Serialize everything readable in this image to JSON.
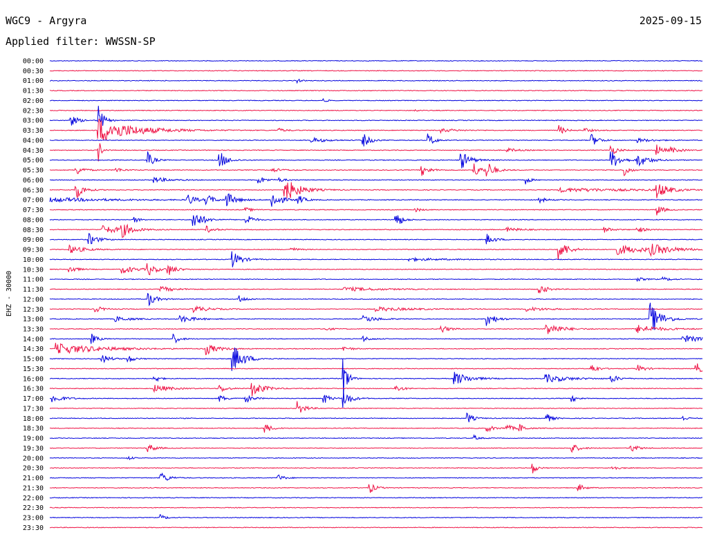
{
  "header": {
    "station": "WGC9 - Argyra",
    "date": "2025-09-15",
    "filter": "Applied filter: WWSSN-SP"
  },
  "chart_data": {
    "type": "line",
    "title": "WGC9 - Argyra",
    "ylabel": "EHZ - 30000",
    "trace_colors": [
      "#0000dd",
      "#ee1144"
    ],
    "grid": false,
    "rows": [
      {
        "label": "00:00",
        "events": []
      },
      {
        "label": "00:30",
        "events": []
      },
      {
        "label": "01:00",
        "events": [
          {
            "t": 0.38,
            "a": 3,
            "d": 0.004
          }
        ]
      },
      {
        "label": "01:30",
        "events": []
      },
      {
        "label": "02:00",
        "events": [
          {
            "t": 0.42,
            "a": 4,
            "d": 0.004
          }
        ]
      },
      {
        "label": "02:30",
        "events": [
          {
            "t": 0.56,
            "a": 2,
            "d": 0.004
          }
        ]
      },
      {
        "label": "03:00",
        "events": [
          {
            "t": 0.03,
            "a": 10,
            "d": 0.01
          },
          {
            "t": 0.075,
            "a": 25,
            "d": 0.006
          }
        ]
      },
      {
        "label": "03:30",
        "events": [
          {
            "t": 0.075,
            "a": 18,
            "d": 0.05
          },
          {
            "t": 0.35,
            "a": 3,
            "d": 0.01
          },
          {
            "t": 0.6,
            "a": 3,
            "d": 0.02
          },
          {
            "t": 0.78,
            "a": 8,
            "d": 0.008
          },
          {
            "t": 0.82,
            "a": 3,
            "d": 0.01
          }
        ]
      },
      {
        "label": "04:00",
        "events": [
          {
            "t": 0.4,
            "a": 4,
            "d": 0.02
          },
          {
            "t": 0.48,
            "a": 10,
            "d": 0.01
          },
          {
            "t": 0.58,
            "a": 10,
            "d": 0.008
          },
          {
            "t": 0.83,
            "a": 9,
            "d": 0.01
          },
          {
            "t": 0.9,
            "a": 3,
            "d": 0.02
          }
        ]
      },
      {
        "label": "04:30",
        "events": [
          {
            "t": 0.075,
            "a": 16,
            "d": 0.004
          },
          {
            "t": 0.7,
            "a": 3,
            "d": 0.015
          },
          {
            "t": 0.86,
            "a": 8,
            "d": 0.008
          },
          {
            "t": 0.93,
            "a": 9,
            "d": 0.008
          },
          {
            "t": 0.95,
            "a": 4,
            "d": 0.015
          }
        ]
      },
      {
        "label": "05:00",
        "events": [
          {
            "t": 0.15,
            "a": 12,
            "d": 0.008
          },
          {
            "t": 0.26,
            "a": 14,
            "d": 0.01
          },
          {
            "t": 0.63,
            "a": 14,
            "d": 0.012
          },
          {
            "t": 0.86,
            "a": 14,
            "d": 0.012
          },
          {
            "t": 0.9,
            "a": 10,
            "d": 0.015
          }
        ]
      },
      {
        "label": "05:30",
        "events": [
          {
            "t": 0.04,
            "a": 8,
            "d": 0.01
          },
          {
            "t": 0.1,
            "a": 4,
            "d": 0.01
          },
          {
            "t": 0.34,
            "a": 3,
            "d": 0.015
          },
          {
            "t": 0.57,
            "a": 8,
            "d": 0.01
          },
          {
            "t": 0.65,
            "a": 10,
            "d": 0.01
          },
          {
            "t": 0.67,
            "a": 12,
            "d": 0.01
          },
          {
            "t": 0.88,
            "a": 12,
            "d": 0.006
          }
        ]
      },
      {
        "label": "06:00",
        "events": [
          {
            "t": 0.16,
            "a": 4,
            "d": 0.02
          },
          {
            "t": 0.32,
            "a": 6,
            "d": 0.01
          },
          {
            "t": 0.35,
            "a": 3,
            "d": 0.01
          },
          {
            "t": 0.73,
            "a": 6,
            "d": 0.006
          }
        ]
      },
      {
        "label": "06:30",
        "events": [
          {
            "t": 0.04,
            "a": 14,
            "d": 0.01
          },
          {
            "t": 0.36,
            "a": 18,
            "d": 0.02
          },
          {
            "t": 0.78,
            "a": 3,
            "d": 0.1
          },
          {
            "t": 0.93,
            "a": 12,
            "d": 0.015
          }
        ]
      },
      {
        "label": "07:00",
        "events": [
          {
            "t": 0.0,
            "a": 3,
            "d": 0.09
          },
          {
            "t": 0.21,
            "a": 10,
            "d": 0.01
          },
          {
            "t": 0.24,
            "a": 8,
            "d": 0.01
          },
          {
            "t": 0.27,
            "a": 12,
            "d": 0.012
          },
          {
            "t": 0.34,
            "a": 14,
            "d": 0.012
          },
          {
            "t": 0.38,
            "a": 8,
            "d": 0.008
          },
          {
            "t": 0.75,
            "a": 4,
            "d": 0.01
          }
        ]
      },
      {
        "label": "07:30",
        "events": [
          {
            "t": 0.3,
            "a": 3,
            "d": 0.01
          },
          {
            "t": 0.56,
            "a": 3,
            "d": 0.008
          },
          {
            "t": 0.93,
            "a": 9,
            "d": 0.008
          }
        ]
      },
      {
        "label": "08:00",
        "events": [
          {
            "t": 0.13,
            "a": 5,
            "d": 0.006
          },
          {
            "t": 0.22,
            "a": 16,
            "d": 0.012
          },
          {
            "t": 0.3,
            "a": 12,
            "d": 0.008
          },
          {
            "t": 0.53,
            "a": 14,
            "d": 0.008
          }
        ]
      },
      {
        "label": "08:30",
        "events": [
          {
            "t": 0.08,
            "a": 6,
            "d": 0.03
          },
          {
            "t": 0.11,
            "a": 10,
            "d": 0.012
          },
          {
            "t": 0.24,
            "a": 5,
            "d": 0.01
          },
          {
            "t": 0.7,
            "a": 3,
            "d": 0.02
          },
          {
            "t": 0.85,
            "a": 4,
            "d": 0.01
          },
          {
            "t": 0.9,
            "a": 5,
            "d": 0.01
          }
        ]
      },
      {
        "label": "09:00",
        "events": [
          {
            "t": 0.06,
            "a": 9,
            "d": 0.012
          },
          {
            "t": 0.67,
            "a": 8,
            "d": 0.01
          }
        ]
      },
      {
        "label": "09:30",
        "events": [
          {
            "t": 0.03,
            "a": 6,
            "d": 0.02
          },
          {
            "t": 0.37,
            "a": 3,
            "d": 0.01
          },
          {
            "t": 0.78,
            "a": 16,
            "d": 0.012
          },
          {
            "t": 0.87,
            "a": 7,
            "d": 0.04
          },
          {
            "t": 0.92,
            "a": 7,
            "d": 0.03
          }
        ]
      },
      {
        "label": "10:00",
        "events": [
          {
            "t": 0.28,
            "a": 12,
            "d": 0.012
          },
          {
            "t": 0.55,
            "a": 2,
            "d": 0.05
          }
        ]
      },
      {
        "label": "10:30",
        "events": [
          {
            "t": 0.03,
            "a": 6,
            "d": 0.01
          },
          {
            "t": 0.11,
            "a": 6,
            "d": 0.02
          },
          {
            "t": 0.15,
            "a": 10,
            "d": 0.01
          },
          {
            "t": 0.18,
            "a": 10,
            "d": 0.01
          }
        ]
      },
      {
        "label": "11:00",
        "events": [
          {
            "t": 0.9,
            "a": 3,
            "d": 0.01
          },
          {
            "t": 0.94,
            "a": 3,
            "d": 0.01
          }
        ]
      },
      {
        "label": "11:30",
        "events": [
          {
            "t": 0.17,
            "a": 4,
            "d": 0.02
          },
          {
            "t": 0.45,
            "a": 3,
            "d": 0.05
          },
          {
            "t": 0.75,
            "a": 8,
            "d": 0.01
          }
        ]
      },
      {
        "label": "12:00",
        "events": [
          {
            "t": 0.15,
            "a": 12,
            "d": 0.01
          },
          {
            "t": 0.29,
            "a": 5,
            "d": 0.01
          }
        ]
      },
      {
        "label": "12:30",
        "events": [
          {
            "t": 0.07,
            "a": 5,
            "d": 0.01
          },
          {
            "t": 0.22,
            "a": 5,
            "d": 0.02
          },
          {
            "t": 0.5,
            "a": 3,
            "d": 0.05
          },
          {
            "t": 0.73,
            "a": 3,
            "d": 0.03
          }
        ]
      },
      {
        "label": "13:00",
        "events": [
          {
            "t": 0.1,
            "a": 4,
            "d": 0.02
          },
          {
            "t": 0.2,
            "a": 5,
            "d": 0.02
          },
          {
            "t": 0.48,
            "a": 5,
            "d": 0.02
          },
          {
            "t": 0.67,
            "a": 10,
            "d": 0.012
          },
          {
            "t": 0.92,
            "a": 24,
            "d": 0.015
          }
        ]
      },
      {
        "label": "13:30",
        "events": [
          {
            "t": 0.42,
            "a": 3,
            "d": 0.01
          },
          {
            "t": 0.6,
            "a": 6,
            "d": 0.01
          },
          {
            "t": 0.76,
            "a": 10,
            "d": 0.02
          },
          {
            "t": 0.9,
            "a": 6,
            "d": 0.03
          }
        ]
      },
      {
        "label": "14:00",
        "events": [
          {
            "t": 0.065,
            "a": 7,
            "d": 0.008
          },
          {
            "t": 0.19,
            "a": 7,
            "d": 0.008
          },
          {
            "t": 0.48,
            "a": 4,
            "d": 0.01
          },
          {
            "t": 0.97,
            "a": 5,
            "d": 0.03
          }
        ]
      },
      {
        "label": "14:30",
        "events": [
          {
            "t": 0.01,
            "a": 8,
            "d": 0.06
          },
          {
            "t": 0.24,
            "a": 8,
            "d": 0.015
          },
          {
            "t": 0.45,
            "a": 4,
            "d": 0.01
          }
        ]
      },
      {
        "label": "15:00",
        "events": [
          {
            "t": 0.08,
            "a": 7,
            "d": 0.01
          },
          {
            "t": 0.12,
            "a": 6,
            "d": 0.008
          },
          {
            "t": 0.28,
            "a": 22,
            "d": 0.015
          }
        ]
      },
      {
        "label": "15:30",
        "events": [
          {
            "t": 0.83,
            "a": 8,
            "d": 0.008
          },
          {
            "t": 0.9,
            "a": 6,
            "d": 0.01
          },
          {
            "t": 0.99,
            "a": 9,
            "d": 0.01
          }
        ]
      },
      {
        "label": "16:00",
        "events": [
          {
            "t": 0.16,
            "a": 8,
            "d": 0.006
          },
          {
            "t": 0.45,
            "a": 30,
            "d": 0.006
          },
          {
            "t": 0.62,
            "a": 10,
            "d": 0.02
          },
          {
            "t": 0.76,
            "a": 6,
            "d": 0.03
          },
          {
            "t": 0.86,
            "a": 6,
            "d": 0.01
          }
        ]
      },
      {
        "label": "16:30",
        "events": [
          {
            "t": 0.16,
            "a": 6,
            "d": 0.02
          },
          {
            "t": 0.26,
            "a": 6,
            "d": 0.01
          },
          {
            "t": 0.31,
            "a": 12,
            "d": 0.015
          },
          {
            "t": 0.53,
            "a": 5,
            "d": 0.01
          }
        ]
      },
      {
        "label": "17:00",
        "events": [
          {
            "t": 0.005,
            "a": 6,
            "d": 0.015
          },
          {
            "t": 0.26,
            "a": 5,
            "d": 0.01
          },
          {
            "t": 0.3,
            "a": 6,
            "d": 0.01
          },
          {
            "t": 0.42,
            "a": 8,
            "d": 0.008
          },
          {
            "t": 0.45,
            "a": 14,
            "d": 0.01
          },
          {
            "t": 0.8,
            "a": 5,
            "d": 0.008
          }
        ]
      },
      {
        "label": "17:30",
        "events": [
          {
            "t": 0.38,
            "a": 10,
            "d": 0.01
          }
        ]
      },
      {
        "label": "18:00",
        "events": [
          {
            "t": 0.64,
            "a": 8,
            "d": 0.008
          },
          {
            "t": 0.76,
            "a": 8,
            "d": 0.008
          },
          {
            "t": 0.97,
            "a": 4,
            "d": 0.006
          }
        ]
      },
      {
        "label": "18:30",
        "events": [
          {
            "t": 0.33,
            "a": 8,
            "d": 0.008
          },
          {
            "t": 0.67,
            "a": 5,
            "d": 0.01
          },
          {
            "t": 0.7,
            "a": 6,
            "d": 0.008
          },
          {
            "t": 0.72,
            "a": 6,
            "d": 0.008
          }
        ]
      },
      {
        "label": "19:00",
        "events": [
          {
            "t": 0.65,
            "a": 4,
            "d": 0.006
          }
        ]
      },
      {
        "label": "19:30",
        "events": [
          {
            "t": 0.15,
            "a": 7,
            "d": 0.01
          },
          {
            "t": 0.8,
            "a": 7,
            "d": 0.01
          },
          {
            "t": 0.89,
            "a": 6,
            "d": 0.01
          }
        ]
      },
      {
        "label": "20:00",
        "events": [
          {
            "t": 0.12,
            "a": 3,
            "d": 0.006
          }
        ]
      },
      {
        "label": "20:30",
        "events": [
          {
            "t": 0.74,
            "a": 8,
            "d": 0.006
          },
          {
            "t": 0.86,
            "a": 5,
            "d": 0.008
          }
        ]
      },
      {
        "label": "21:00",
        "events": [
          {
            "t": 0.17,
            "a": 9,
            "d": 0.01
          },
          {
            "t": 0.35,
            "a": 5,
            "d": 0.008
          }
        ]
      },
      {
        "label": "21:30",
        "events": [
          {
            "t": 0.49,
            "a": 8,
            "d": 0.008
          },
          {
            "t": 0.81,
            "a": 6,
            "d": 0.008
          }
        ]
      },
      {
        "label": "22:00",
        "events": []
      },
      {
        "label": "22:30",
        "events": []
      },
      {
        "label": "23:00",
        "events": [
          {
            "t": 0.17,
            "a": 4,
            "d": 0.008
          }
        ]
      },
      {
        "label": "23:30",
        "events": []
      }
    ]
  }
}
